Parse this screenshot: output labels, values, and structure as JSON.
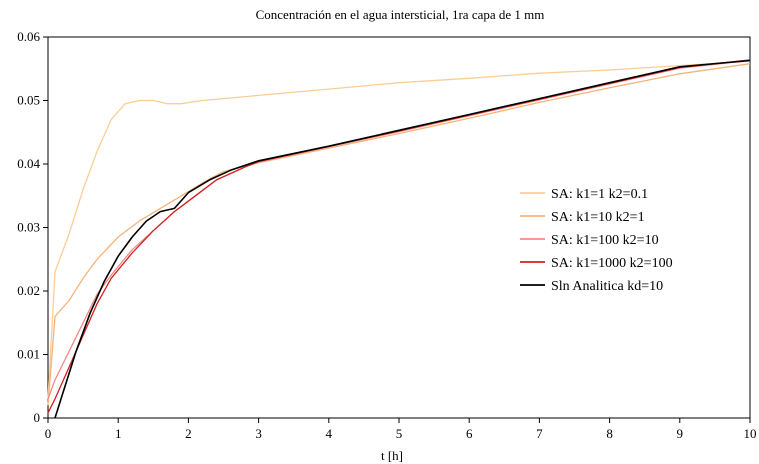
{
  "chart_data": {
    "type": "line",
    "title": "Concentración en el agua intersticial, 1ra capa de 1 mm",
    "xlabel": "t [h]",
    "ylabel": "",
    "xlim": [
      0,
      10
    ],
    "ylim": [
      0,
      0.06
    ],
    "x_ticks": [
      0,
      1,
      2,
      3,
      4,
      5,
      6,
      7,
      8,
      9,
      10
    ],
    "x_tick_labels": [
      "0",
      "1",
      "2",
      "3",
      "4",
      "5",
      "6",
      "7",
      "8",
      "9",
      "10"
    ],
    "y_ticks": [
      0,
      0.01,
      0.02,
      0.03,
      0.04,
      0.05,
      0.06
    ],
    "y_tick_labels": [
      "0",
      "0.01",
      "0.02",
      "0.03",
      "0.04",
      "0.05",
      "0.06"
    ],
    "grid": false,
    "legend_position": "right-middle",
    "series": [
      {
        "name": "Sln Analitica kd=10",
        "color": "#000000",
        "points": [
          [
            0.1,
            0
          ],
          [
            0.2,
            0.0035
          ],
          [
            0.4,
            0.0105
          ],
          [
            0.6,
            0.0165
          ],
          [
            0.8,
            0.0215
          ],
          [
            1.0,
            0.0255
          ],
          [
            1.2,
            0.0285
          ],
          [
            1.4,
            0.031
          ],
          [
            1.6,
            0.0325
          ],
          [
            1.8,
            0.033
          ],
          [
            2.0,
            0.0355
          ],
          [
            2.3,
            0.0375
          ],
          [
            2.6,
            0.039
          ],
          [
            3.0,
            0.0405
          ],
          [
            4.0,
            0.0428
          ],
          [
            5.0,
            0.0453
          ],
          [
            6.0,
            0.0478
          ],
          [
            7.0,
            0.0503
          ],
          [
            8.0,
            0.0528
          ],
          [
            9.0,
            0.0553
          ],
          [
            10.0,
            0.0563
          ]
        ]
      },
      {
        "name": "SA: k1=1 k2=0.1",
        "color": "#f9ce95",
        "points": [
          [
            0,
            0.003
          ],
          [
            0.1,
            0.023
          ],
          [
            0.3,
            0.029
          ],
          [
            0.5,
            0.036
          ],
          [
            0.7,
            0.042
          ],
          [
            0.9,
            0.047
          ],
          [
            1.1,
            0.0495
          ],
          [
            1.3,
            0.05
          ],
          [
            1.5,
            0.05
          ],
          [
            1.7,
            0.0495
          ],
          [
            1.9,
            0.0495
          ],
          [
            2.2,
            0.05
          ],
          [
            3.0,
            0.0508
          ],
          [
            4.0,
            0.0518
          ],
          [
            5.0,
            0.0528
          ],
          [
            6.0,
            0.0535
          ],
          [
            7.0,
            0.0543
          ],
          [
            8.0,
            0.0548
          ],
          [
            9.0,
            0.0555
          ],
          [
            10.0,
            0.0562
          ]
        ]
      },
      {
        "name": "SA: k1=10 k2=1",
        "color": "#f5b37a",
        "points": [
          [
            0,
            0.002
          ],
          [
            0.1,
            0.016
          ],
          [
            0.3,
            0.0185
          ],
          [
            0.5,
            0.022
          ],
          [
            0.7,
            0.025
          ],
          [
            1.0,
            0.0285
          ],
          [
            1.3,
            0.031
          ],
          [
            1.6,
            0.033
          ],
          [
            1.9,
            0.035
          ],
          [
            2.2,
            0.037
          ],
          [
            2.5,
            0.0388
          ],
          [
            3.0,
            0.0402
          ],
          [
            4.0,
            0.0425
          ],
          [
            5.0,
            0.0448
          ],
          [
            6.0,
            0.0472
          ],
          [
            7.0,
            0.0497
          ],
          [
            8.0,
            0.052
          ],
          [
            9.0,
            0.0542
          ],
          [
            10.0,
            0.0558
          ]
        ]
      },
      {
        "name": "SA: k1=100 k2=10",
        "color": "#f28b84",
        "points": [
          [
            0,
            0.003
          ],
          [
            0.1,
            0.006
          ],
          [
            0.3,
            0.0105
          ],
          [
            0.5,
            0.015
          ],
          [
            0.7,
            0.0195
          ],
          [
            0.9,
            0.0225
          ],
          [
            1.2,
            0.0265
          ],
          [
            1.5,
            0.0295
          ],
          [
            1.8,
            0.0325
          ],
          [
            2.1,
            0.035
          ],
          [
            2.4,
            0.0375
          ],
          [
            2.8,
            0.0395
          ],
          [
            3.0,
            0.0403
          ],
          [
            4.0,
            0.0427
          ],
          [
            5.0,
            0.0451
          ],
          [
            6.0,
            0.0476
          ],
          [
            7.0,
            0.0501
          ],
          [
            8.0,
            0.0526
          ],
          [
            9.0,
            0.0551
          ],
          [
            10.0,
            0.0563
          ]
        ]
      },
      {
        "name": "SA: k1=1000 k2=100",
        "color": "#d42020",
        "points": [
          [
            0,
            0.0008
          ],
          [
            0.1,
            0.003
          ],
          [
            0.3,
            0.008
          ],
          [
            0.5,
            0.013
          ],
          [
            0.7,
            0.018
          ],
          [
            0.9,
            0.022
          ],
          [
            1.2,
            0.026
          ],
          [
            1.5,
            0.0295
          ],
          [
            1.8,
            0.0325
          ],
          [
            2.1,
            0.035
          ],
          [
            2.4,
            0.0375
          ],
          [
            2.8,
            0.0395
          ],
          [
            3.0,
            0.0404
          ],
          [
            4.0,
            0.0428
          ],
          [
            5.0,
            0.0452
          ],
          [
            6.0,
            0.0477
          ],
          [
            7.0,
            0.0502
          ],
          [
            8.0,
            0.0527
          ],
          [
            9.0,
            0.0552
          ],
          [
            10.0,
            0.0564
          ]
        ]
      }
    ]
  }
}
